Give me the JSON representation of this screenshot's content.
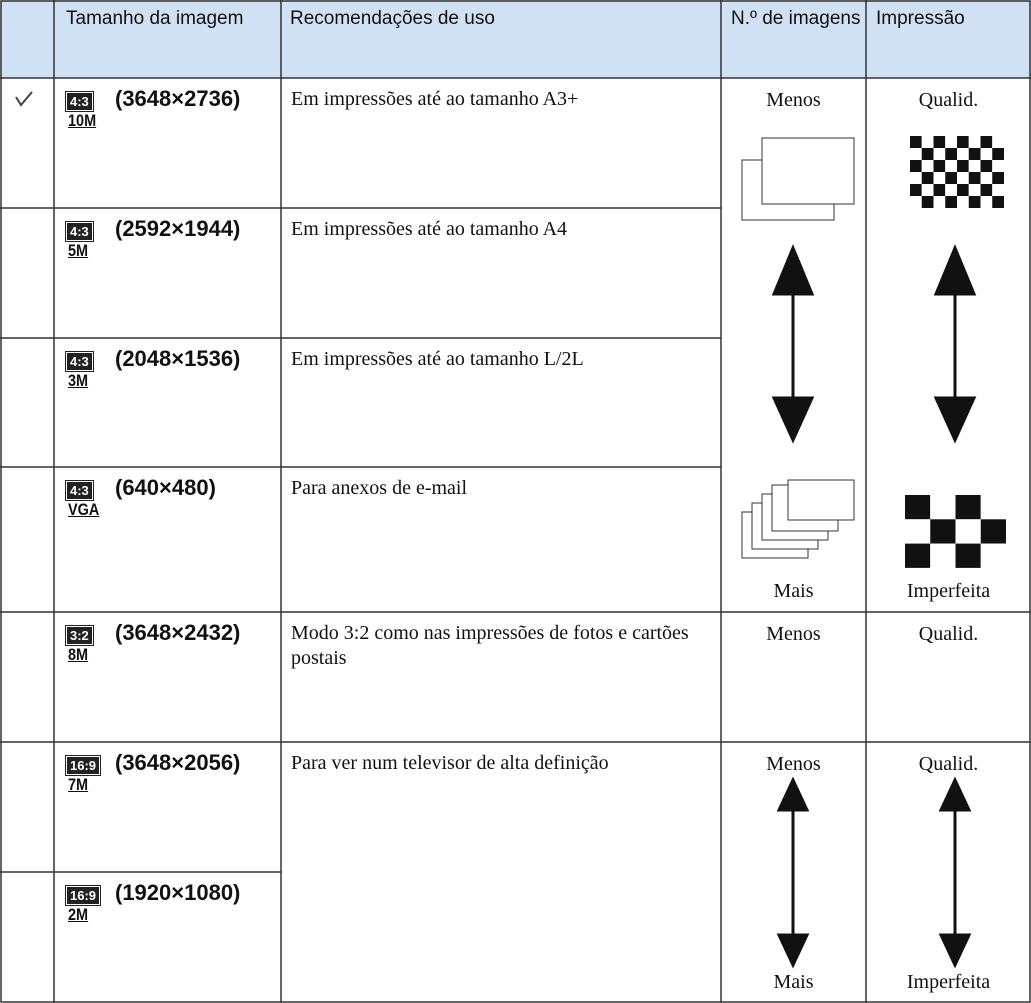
{
  "table": {
    "header": [
      "Tamanho da imagem",
      "Recomendações de uso",
      "N.º de imagens",
      "Impressão"
    ],
    "rows": [
      {
        "aspect": "4:3",
        "resolution": "(3648×2736)",
        "megapixels": "10M",
        "use": "Em impressões até ao tamanho A3+"
      },
      {
        "aspect": "4:3",
        "resolution": "(2592×1944)",
        "megapixels": "5M",
        "use": "Em impressões até ao tamanho A4"
      },
      {
        "aspect": "4:3",
        "resolution": "(2048×1536)",
        "megapixels": "3M",
        "use": "Em impressões até ao tamanho L/2L"
      },
      {
        "aspect": "4:3",
        "resolution": "(640×480)",
        "megapixels": "VGA",
        "use": "Para anexos de e-mail"
      },
      {
        "aspect": "3:2",
        "resolution": "(3648×2432)",
        "megapixels": "8M",
        "use": "Modo 3:2 como nas impressões de fotos e cartões postais"
      },
      {
        "aspect": "16:9",
        "resolution": "(3648×2056)",
        "megapixels": "7M",
        "use": "Para ver num televisor de alta definição"
      },
      {
        "aspect": "16:9",
        "resolution": "(1920×1080)",
        "megapixels": "2M"
      }
    ],
    "groups": [
      {
        "images_top": "Menos",
        "images_bottom": "Mais",
        "print_top": "Qualid.",
        "print_bottom": "Imperfeita"
      },
      {
        "images_top": "Menos",
        "print_top": "Qualid."
      },
      {
        "images_top": "Menos",
        "images_bottom": "Mais",
        "print_top": "Qualid.",
        "print_bottom": "Imperfeita"
      }
    ]
  }
}
